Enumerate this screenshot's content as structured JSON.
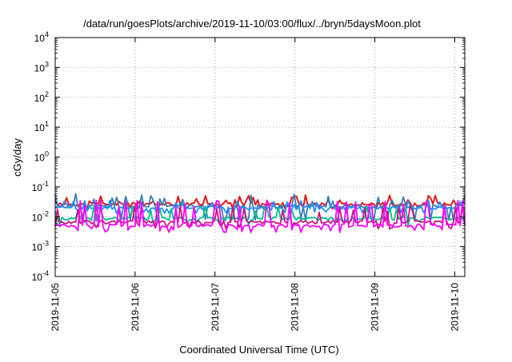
{
  "chart_data": {
    "type": "line",
    "title": "/data/run/goesPlots/archive/2019-11-10/03:00/flux/../bryn/5daysMoon.plot",
    "xlabel": "Coordinated Universal Time (UTC)",
    "ylabel": "cGy/day",
    "yscale": "log",
    "ylim": [
      0.0001,
      10000
    ],
    "xlim": [
      "2019-11-05T00:00",
      "2019-11-10T03:00"
    ],
    "grid": true,
    "legend": "none",
    "y_ticks": [
      {
        "base": "10",
        "exp": "-4"
      },
      {
        "base": "10",
        "exp": "-3"
      },
      {
        "base": "10",
        "exp": "-2"
      },
      {
        "base": "10",
        "exp": "-1"
      },
      {
        "base": "10",
        "exp": "0"
      },
      {
        "base": "10",
        "exp": "1"
      },
      {
        "base": "10",
        "exp": "2"
      },
      {
        "base": "10",
        "exp": "3"
      },
      {
        "base": "10",
        "exp": "4"
      }
    ],
    "x_ticks": [
      "2019-11-05",
      "2019-11-06",
      "2019-11-07",
      "2019-11-08",
      "2019-11-09",
      "2019-11-10"
    ],
    "series": [
      {
        "color": "#e41a1c",
        "base": 0.026,
        "spike": 0.045,
        "dip": 0.022,
        "seed": 11
      },
      {
        "color": "#377eb8",
        "base": 0.022,
        "spike": 0.05,
        "dip": 0.008,
        "seed": 23
      },
      {
        "color": "#1e90ff",
        "base": 0.019,
        "spike": 0.03,
        "dip": 0.015,
        "seed": 37
      },
      {
        "color": "#00c08b",
        "base": 0.0085,
        "spike": 0.02,
        "dip": 0.006,
        "seed": 41
      },
      {
        "color": "#c71585",
        "base": 0.0065,
        "spike": 0.02,
        "dip": 0.0045,
        "seed": 53
      },
      {
        "color": "#ff00ff",
        "base": 0.005,
        "spike": 0.03,
        "dip": 0.0035,
        "seed": 67
      }
    ]
  }
}
